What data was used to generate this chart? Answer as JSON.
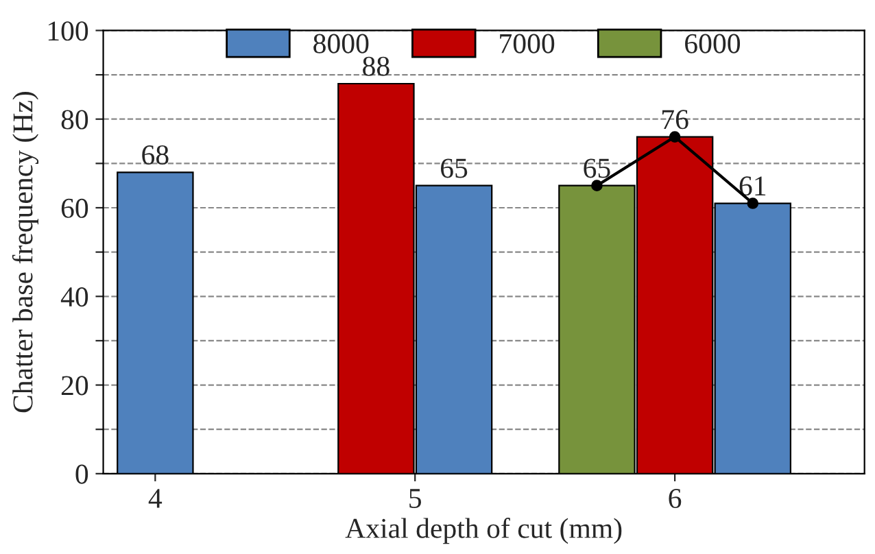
{
  "chart_data": {
    "type": "bar",
    "xlabel": "Axial depth of cut (mm)",
    "ylabel": "Chatter base frequency (Hz)",
    "categories": [
      "4",
      "5",
      "6"
    ],
    "series": [
      {
        "name": "8000",
        "color": "#4f81bd",
        "values": [
          68,
          65,
          61
        ]
      },
      {
        "name": "7000",
        "color": "#c00000",
        "values": [
          null,
          88,
          76
        ]
      },
      {
        "name": "6000",
        "color": "#77933c",
        "values": [
          null,
          null,
          65
        ]
      }
    ],
    "ylim": [
      0,
      100
    ],
    "yticks": [
      0,
      {
        "value": 10,
        "label": null
      },
      20,
      {
        "value": 30,
        "label": null
      },
      40,
      {
        "value": 50,
        "label": null
      },
      60,
      {
        "value": 70,
        "label": null
      },
      80,
      {
        "value": 90,
        "label": null
      },
      100
    ],
    "grid": "y",
    "legend": "top",
    "data_labels": true
  }
}
